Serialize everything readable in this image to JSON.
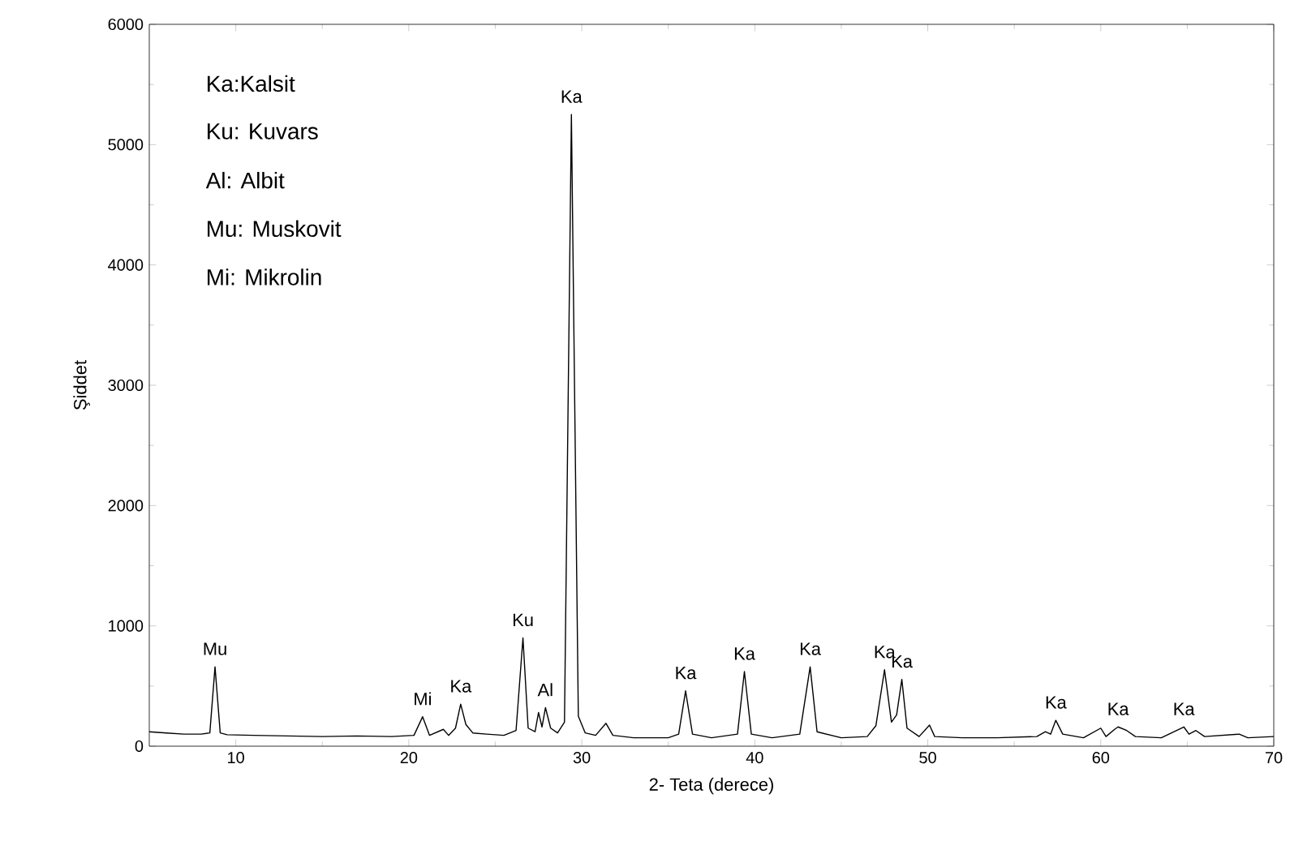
{
  "chart_data": {
    "type": "line",
    "xlabel": "2- Teta (derece)",
    "ylabel": "Şiddet",
    "xlim": [
      5,
      70
    ],
    "ylim": [
      0,
      6000
    ],
    "xticks": [
      10,
      20,
      30,
      40,
      50,
      60,
      70
    ],
    "yticks": [
      0,
      1000,
      2000,
      3000,
      4000,
      5000,
      6000
    ],
    "grid": false,
    "marker": "none",
    "line_style": "solid",
    "series": [
      {
        "color": "#000000",
        "x": [
          5,
          6,
          7,
          8,
          8.5,
          8.8,
          9.1,
          9.5,
          11,
          13,
          15,
          17,
          19,
          20.3,
          20.8,
          21.2,
          22,
          22.3,
          22.7,
          23.0,
          23.3,
          23.7,
          24.5,
          25.5,
          26.2,
          26.6,
          26.9,
          27.3,
          27.5,
          27.7,
          27.9,
          28.2,
          28.6,
          29.0,
          29.4,
          29.8,
          30.2,
          30.8,
          31.4,
          31.8,
          33,
          35,
          35.6,
          36.0,
          36.4,
          37.5,
          39.0,
          39.4,
          39.8,
          41,
          42.6,
          43.2,
          43.6,
          45,
          46.5,
          47.0,
          47.5,
          47.9,
          48.2,
          48.5,
          48.8,
          49.5,
          50.1,
          50.4,
          52,
          54,
          56.3,
          56.8,
          57.1,
          57.4,
          57.8,
          59,
          60.0,
          60.3,
          60.8,
          61.0,
          61.5,
          62,
          63.5,
          64.8,
          65.1,
          65.5,
          66,
          68,
          68.5,
          70
        ],
        "values": [
          120,
          110,
          100,
          100,
          110,
          660,
          110,
          95,
          90,
          85,
          80,
          85,
          80,
          90,
          245,
          90,
          140,
          90,
          150,
          350,
          180,
          110,
          100,
          90,
          130,
          900,
          150,
          120,
          280,
          160,
          320,
          150,
          110,
          200,
          5250,
          250,
          110,
          90,
          190,
          90,
          70,
          70,
          100,
          460,
          100,
          70,
          100,
          620,
          100,
          70,
          100,
          660,
          120,
          70,
          80,
          170,
          635,
          200,
          260,
          555,
          150,
          80,
          175,
          80,
          70,
          70,
          80,
          120,
          100,
          215,
          100,
          70,
          150,
          80,
          140,
          160,
          130,
          80,
          70,
          160,
          100,
          130,
          80,
          100,
          70,
          80
        ]
      }
    ],
    "annotations": [
      "Ka:Kalsit",
      "Ku: Kuvars",
      "Al: Albit",
      "Mu: Muskovit",
      "Mi: Mikrolin",
      {
        "text": "Mu",
        "x": 8.8,
        "y": 660
      },
      {
        "text": "Mi",
        "x": 20.8,
        "y": 245
      },
      {
        "text": "Ka",
        "x": 23.0,
        "y": 350
      },
      {
        "text": "Ku",
        "x": 26.6,
        "y": 900
      },
      {
        "text": "Al",
        "x": 27.9,
        "y": 320
      },
      {
        "text": "Ka",
        "x": 29.4,
        "y": 5250
      },
      {
        "text": "Ka",
        "x": 36.0,
        "y": 460
      },
      {
        "text": "Ka",
        "x": 39.4,
        "y": 620
      },
      {
        "text": "Ka",
        "x": 43.2,
        "y": 660
      },
      {
        "text": "Ka",
        "x": 47.5,
        "y": 635
      },
      {
        "text": "Ka",
        "x": 48.5,
        "y": 555
      },
      {
        "text": "Ka",
        "x": 57.4,
        "y": 215
      },
      {
        "text": "Ka",
        "x": 61.0,
        "y": 160
      },
      {
        "text": "Ka",
        "x": 64.8,
        "y": 160
      }
    ]
  }
}
